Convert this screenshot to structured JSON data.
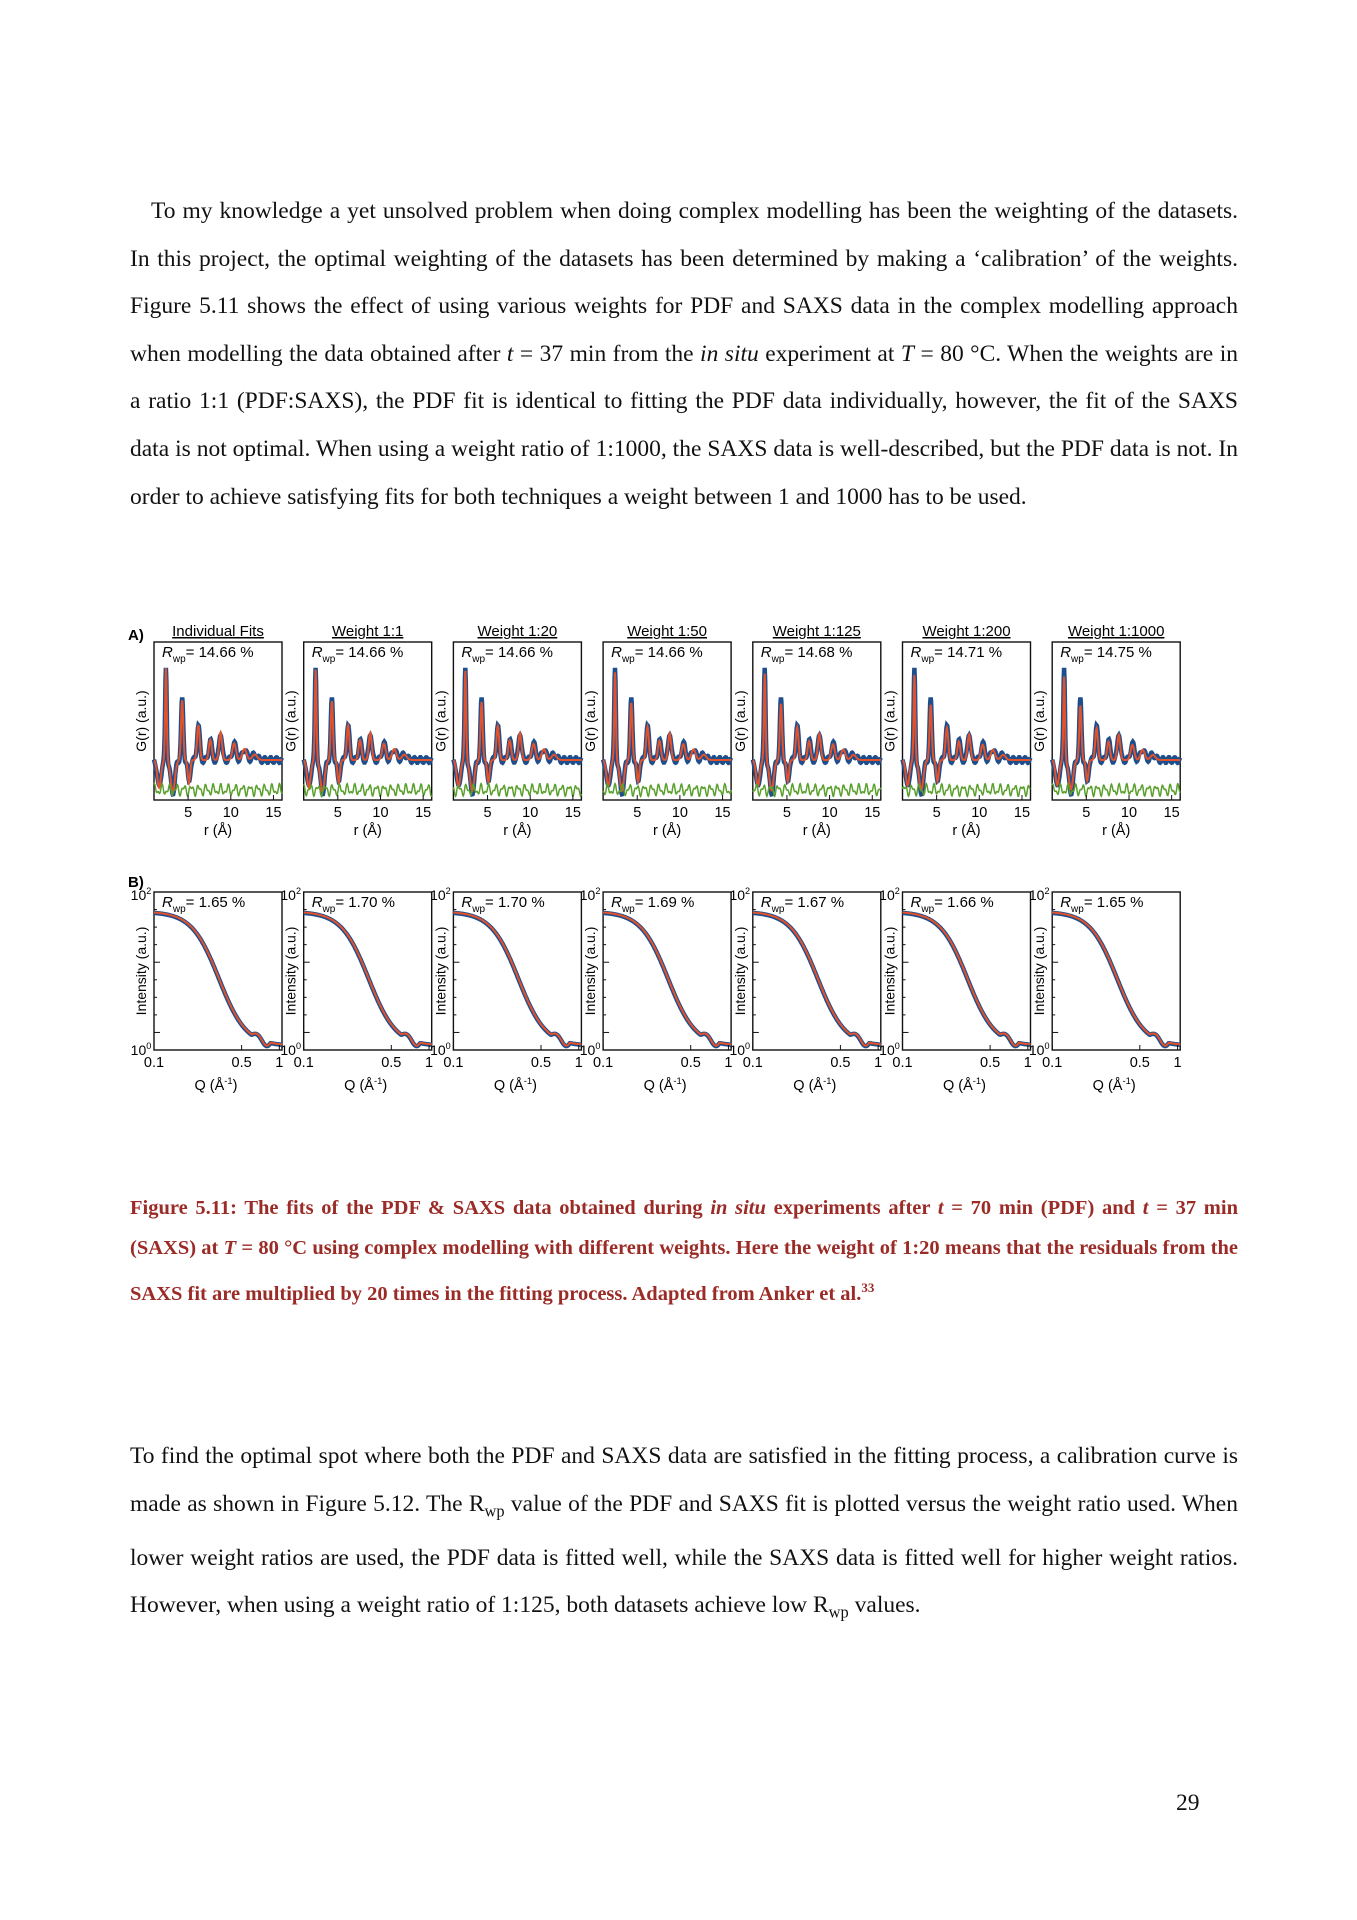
{
  "para1": {
    "s1": "To my knowledge a yet unsolved problem when doing complex modelling has been the weighting of the datasets. In this project, the optimal weighting of the datasets has been determined by making a ‘calibration’ of the weights. Figure 5.11 shows the effect of using various weights for PDF and SAXS data in the complex modelling approach when modelling the data obtained after ",
    "t_var": "t",
    "s2": " = 37 min from the ",
    "in_situ": "in situ",
    "s3": " experiment at ",
    "T_var": "T",
    "s4": " = 80 °C. When the weights are in a ratio 1:1 (PDF:SAXS), the PDF fit is identical to fitting the PDF data individually, however, the fit of the SAXS data is not optimal. When using a weight ratio of 1:1000, the SAXS data is well-described, but the PDF data is not. In order to achieve satisfying fits for both techniques a weight between 1 and 1000 has to be used."
  },
  "figure": {
    "panel_a_label": "A)",
    "panel_b_label": "B)",
    "pdf_ylabel": "G(r) (a.u.)",
    "pdf_xlabel": "r (Å)",
    "pdf_xticks": [
      "5",
      "10",
      "15"
    ],
    "saxs_ylabel": "Intensity (a.u.)",
    "saxs_xlabel": "Q (Å",
    "saxs_xlabel_sup": "-1",
    "saxs_xlabel_end": ")",
    "saxs_xticks": [
      "0.1",
      "0.5",
      "1"
    ],
    "saxs_ytick_top": "10",
    "saxs_ytick_top_exp": "2",
    "saxs_ytick_bottom": "10",
    "saxs_ytick_bottom_exp": "0",
    "rwp_symbol": "R",
    "rwp_sub": "wp",
    "colors": {
      "data": "#1f4e8c",
      "fit": "#e4522b",
      "difference": "#5aa02c"
    },
    "panels": [
      {
        "title": "Individual Fits",
        "pdf_rwp": "= 14.66 %",
        "saxs_rwp": "= 1.65 %"
      },
      {
        "title": "Weight 1:1",
        "pdf_rwp": "= 14.66 %",
        "saxs_rwp": "= 1.70 %"
      },
      {
        "title": "Weight 1:20",
        "pdf_rwp": "= 14.66 %",
        "saxs_rwp": "= 1.70 %"
      },
      {
        "title": "Weight 1:50",
        "pdf_rwp": "= 14.66 %",
        "saxs_rwp": "= 1.69 %"
      },
      {
        "title": "Weight 1:125",
        "pdf_rwp": "= 14.68 %",
        "saxs_rwp": "= 1.67 %"
      },
      {
        "title": "Weight 1:200",
        "pdf_rwp": "= 14.71 %",
        "saxs_rwp": "= 1.66 %"
      },
      {
        "title": "Weight 1:1000",
        "pdf_rwp": "= 14.75 %",
        "saxs_rwp": "= 1.65 %"
      }
    ]
  },
  "caption": {
    "c1": "Figure 5.11: The fits of the PDF & SAXS data obtained during ",
    "in_situ": "in situ",
    "c2": " experiments after ",
    "t_var": "t",
    "c3": " = 70 min (PDF) and ",
    "t_var2": "t",
    "c4": " = 37 min (SAXS) at ",
    "T_var": "T",
    "c5": " = 80 °C using complex modelling with different weights. Here the weight of 1:20 means that the residuals from the SAXS fit are multiplied by 20 times in the fitting process. Adapted from Anker et al.",
    "ref": "33"
  },
  "para2": {
    "s1": "To find the optimal spot where both the PDF and SAXS data are satisfied in the fitting process, a calibration curve is made as shown in Figure 5.12. The R",
    "sub1": "wp",
    "s2": " value of the PDF and SAXS fit is plotted versus the weight ratio used. When lower weight ratios are used, the PDF data is fitted well, while the SAXS data is fitted well for higher weight ratios. However, when using a weight ratio of 1:125, both datasets achieve low R",
    "sub2": "wp",
    "s3": " values."
  },
  "page_number": "29"
}
